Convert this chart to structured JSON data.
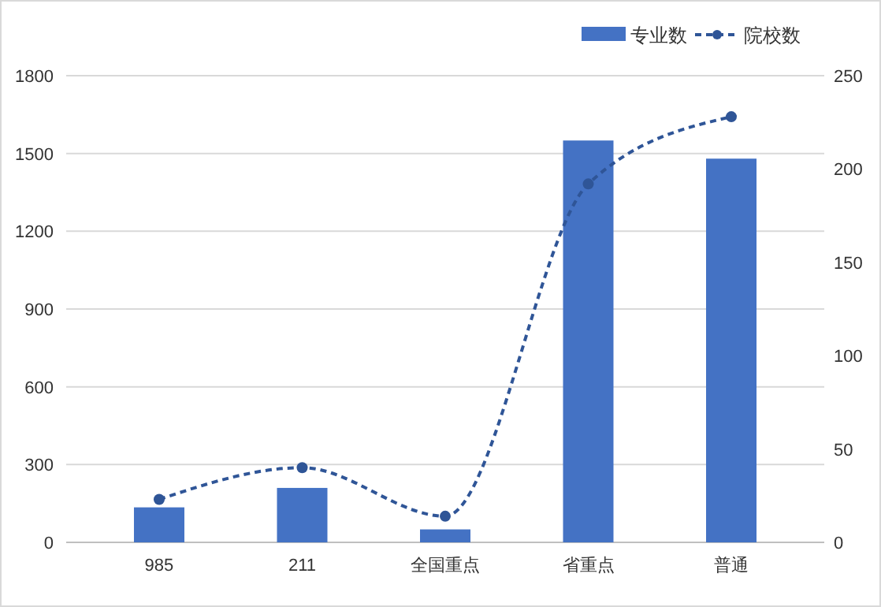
{
  "chart_data": {
    "type": "bar",
    "categories": [
      "985",
      "211",
      "全国重点",
      "省重点",
      "普通"
    ],
    "series": [
      {
        "name": "专业数",
        "color": "#4472c4",
        "values": [
          135,
          210,
          50,
          1550,
          1480
        ]
      },
      {
        "name": "院校数",
        "type": "line",
        "axis": "y2",
        "color": "#2f5597",
        "values": [
          23,
          40,
          14,
          192,
          228
        ],
        "marker": "circle",
        "line_style": "dashed"
      }
    ],
    "ylim": [
      0,
      1800
    ],
    "yticks": [
      0,
      300,
      600,
      900,
      1200,
      1500,
      1800
    ],
    "y2lim": [
      0,
      250
    ],
    "y2ticks": [
      0,
      50,
      100,
      150,
      200,
      250
    ],
    "grid": "y",
    "legend": "top right"
  }
}
